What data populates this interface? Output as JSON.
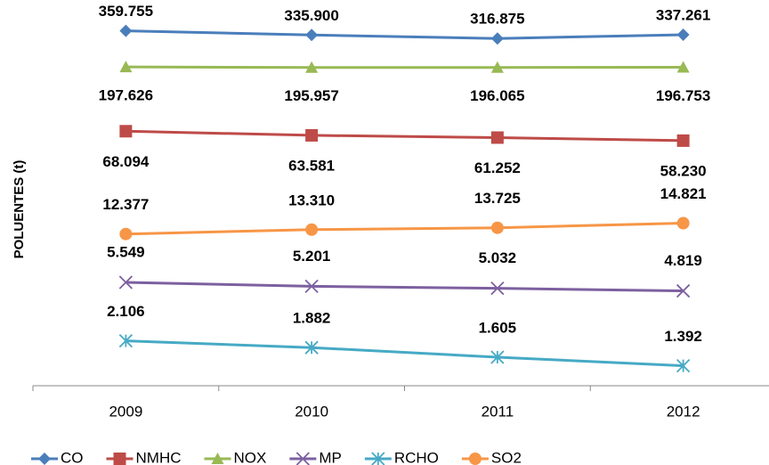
{
  "chart_data": {
    "type": "line",
    "y_label": "POLUENTES (t)",
    "categories": [
      "2009",
      "2010",
      "2011",
      "2012"
    ],
    "yscale": "log",
    "ylim": [
      1000,
      600000
    ],
    "series": [
      {
        "name": "CO",
        "color": "#4a7ebb",
        "marker": "diamond",
        "values": [
          359755,
          335900,
          316875,
          337261
        ],
        "value_labels": [
          "359.755",
          "335.900",
          "316.875",
          "337.261"
        ]
      },
      {
        "name": "NMHC",
        "color": "#be4b48",
        "marker": "square",
        "values": [
          68094,
          63581,
          61252,
          58230
        ],
        "value_labels": [
          "68.094",
          "63.581",
          "61.252",
          "58.230"
        ]
      },
      {
        "name": "NOX",
        "color": "#98b954",
        "marker": "triangle",
        "values": [
          197626,
          195957,
          196065,
          196753
        ],
        "value_labels": [
          "197.626",
          "195.957",
          "196.065",
          "196.753"
        ]
      },
      {
        "name": "MP",
        "color": "#7d60a0",
        "marker": "x",
        "values": [
          5549,
          5201,
          5032,
          4819
        ],
        "value_labels": [
          "5.549",
          "5.201",
          "5.032",
          "4.819"
        ]
      },
      {
        "name": "RCHO",
        "color": "#46aac5",
        "marker": "star",
        "values": [
          2106,
          1882,
          1605,
          1392
        ],
        "value_labels": [
          "2.106",
          "1.882",
          "1.605",
          "1.392"
        ]
      },
      {
        "name": "SO2",
        "color": "#f79646",
        "marker": "circle",
        "values": [
          12377,
          13310,
          13725,
          14821
        ],
        "value_labels": [
          "12.377",
          "13.310",
          "13.725",
          "14.821"
        ]
      }
    ],
    "legend": "bottom"
  }
}
